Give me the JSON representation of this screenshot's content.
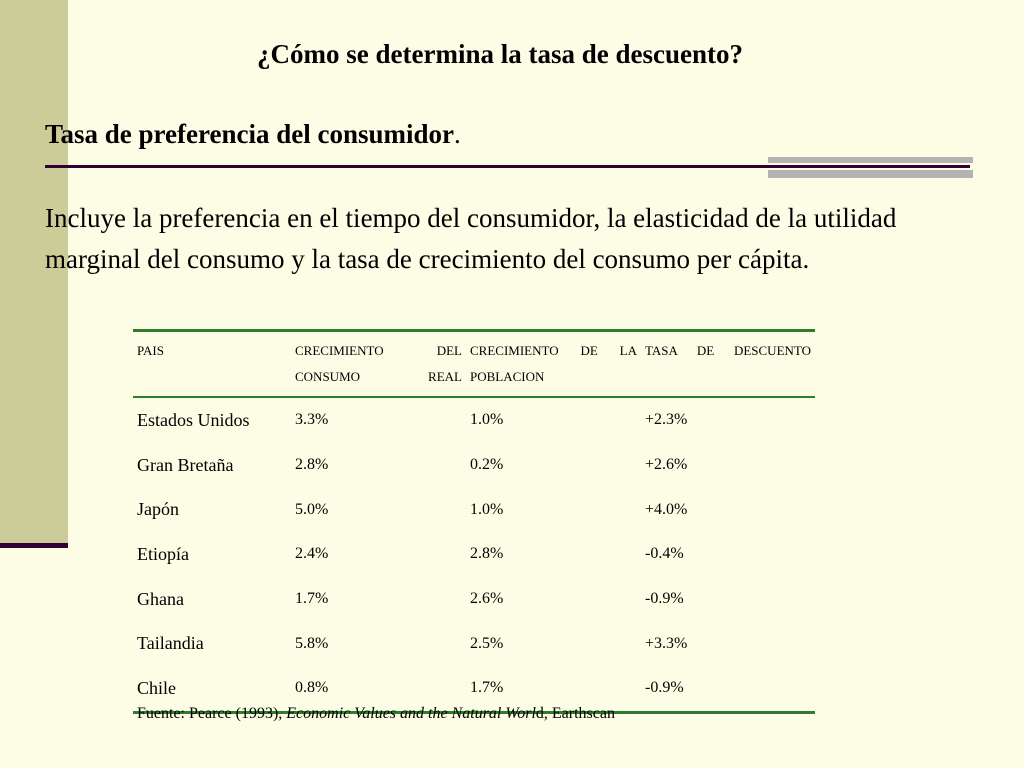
{
  "slide": {
    "title": "¿Cómo se determina la tasa de descuento?",
    "subtitle": "Tasa de preferencia del consumidor",
    "subtitle_end": ".",
    "body": " Incluye la preferencia en el tiempo del consumidor, la elasticidad de la utilidad marginal del consumo y la tasa de crecimiento del consumo per cápita.",
    "colors": {
      "background": "#fdfde6",
      "side_bar": "#cccc99",
      "rule": "#330033",
      "table_rule": "#2e7d2e"
    }
  },
  "table": {
    "headers": [
      "PAIS",
      "CRECIMIENTO DEL CONSUMO REAL",
      "CRECIMIENTO DE LA POBLACION",
      "TASA DE DESCUENTO"
    ],
    "rows": [
      [
        "Estados Unidos",
        "3.3%",
        "1.0%",
        "+2.3%"
      ],
      [
        "Gran Bretaña",
        "2.8%",
        "0.2%",
        "+2.6%"
      ],
      [
        "Japón",
        "5.0%",
        "1.0%",
        "+4.0%"
      ],
      [
        "Etiopía",
        "2.4%",
        "2.8%",
        "-0.4%"
      ],
      [
        "Ghana",
        "1.7%",
        "2.6%",
        "-0.9%"
      ],
      [
        "Tailandia",
        "5.8%",
        "2.5%",
        "+3.3%"
      ],
      [
        "Chile",
        "0.8%",
        "1.7%",
        "-0.9%"
      ]
    ]
  },
  "source": {
    "prefix": "Fuente: Pearce (1993), ",
    "italic": "Economic Values and the Natural Worl",
    "suffix": "d, Earthscan"
  }
}
